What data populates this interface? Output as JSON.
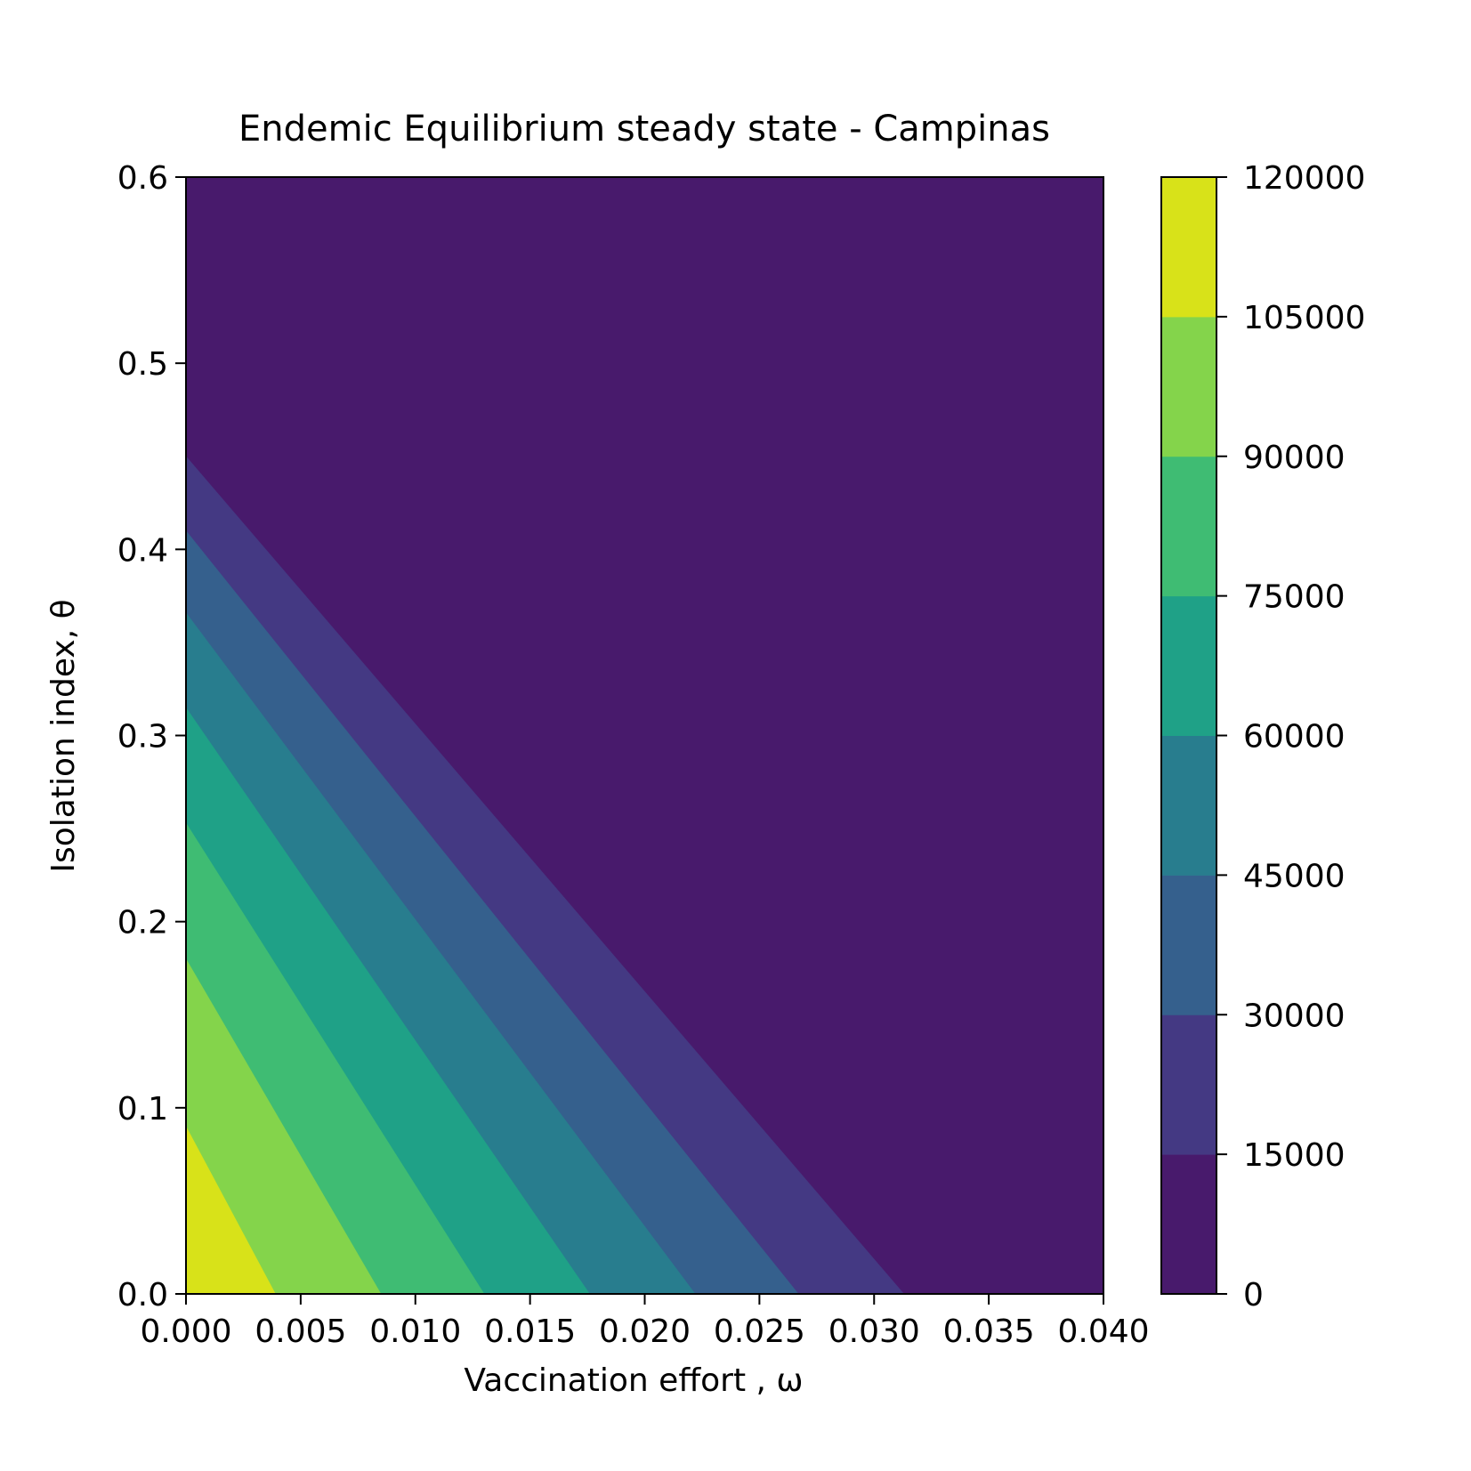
{
  "chart_data": {
    "type": "contourf",
    "title": "Endemic Equilibrium steady state - Campinas",
    "xlabel": "Vaccination effort , ω",
    "ylabel": "Isolation index, θ",
    "xlim": [
      0.0,
      0.04
    ],
    "ylim": [
      0.0,
      0.6
    ],
    "x_ticks": [
      "0.000",
      "0.005",
      "0.010",
      "0.015",
      "0.020",
      "0.025",
      "0.030",
      "0.035",
      "0.040"
    ],
    "y_ticks": [
      "0.0",
      "0.1",
      "0.2",
      "0.3",
      "0.4",
      "0.5",
      "0.6"
    ],
    "colorbar": {
      "ticks": [
        "0",
        "15000",
        "30000",
        "45000",
        "60000",
        "75000",
        "90000",
        "105000",
        "120000"
      ],
      "levels": [
        0,
        15000,
        30000,
        45000,
        60000,
        75000,
        90000,
        105000,
        120000
      ],
      "colors": [
        "#481a6c",
        "#443983",
        "#35608d",
        "#287d8e",
        "#1fa187",
        "#3fbc73",
        "#84d44b",
        "#d8e219"
      ]
    },
    "contour_boundaries": [
      {
        "level": 15000,
        "x_at_y0": 0.0313,
        "y_at_x0": 0.45
      },
      {
        "level": 30000,
        "x_at_y0": 0.0267,
        "y_at_x0": 0.41
      },
      {
        "level": 45000,
        "x_at_y0": 0.0222,
        "y_at_x0": 0.366
      },
      {
        "level": 60000,
        "x_at_y0": 0.0176,
        "y_at_x0": 0.315
      },
      {
        "level": 75000,
        "x_at_y0": 0.013,
        "y_at_x0": 0.253
      },
      {
        "level": 90000,
        "x_at_y0": 0.0085,
        "y_at_x0": 0.18
      },
      {
        "level": 105000,
        "x_at_y0": 0.0039,
        "y_at_x0": 0.09
      }
    ]
  }
}
